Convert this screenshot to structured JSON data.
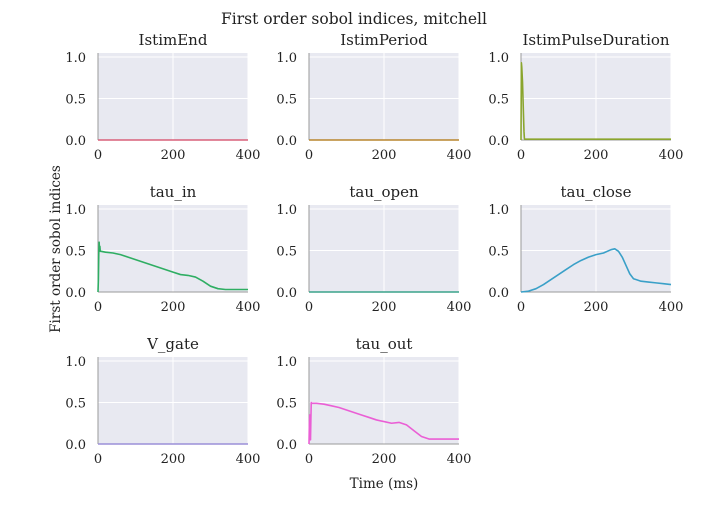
{
  "figure": {
    "suptitle": "First order sobol indices, mitchell",
    "ylabel": "First order sobol indices",
    "xlabel": "Time (ms)"
  },
  "style": {
    "panel_background": "#e8e9f1",
    "grid_color": "#ffffff",
    "axis_color": "#9a9a9a",
    "text_color": "#222222"
  },
  "chart_data": [
    {
      "type": "line",
      "title": "IstimEnd",
      "color": "#d9607a",
      "xlim": [
        0,
        400
      ],
      "ylim": [
        0,
        1.0
      ],
      "xticks": [
        "0",
        "200",
        "400"
      ],
      "yticks": [
        "0.0",
        "0.5",
        "1.0"
      ],
      "x": [
        0,
        100,
        200,
        300,
        400
      ],
      "y": [
        0,
        0,
        0,
        0,
        0
      ]
    },
    {
      "type": "line",
      "title": "IstimPeriod",
      "color": "#b8862e",
      "xlim": [
        0,
        400
      ],
      "ylim": [
        0,
        1.0
      ],
      "xticks": [
        "0",
        "200",
        "400"
      ],
      "yticks": [
        "0.0",
        "0.5",
        "1.0"
      ],
      "x": [
        0,
        100,
        200,
        300,
        400
      ],
      "y": [
        0,
        0,
        0,
        0,
        0
      ]
    },
    {
      "type": "line",
      "title": "IstimPulseDuration",
      "color": "#8aa52e",
      "xlim": [
        0,
        400
      ],
      "ylim": [
        0,
        1.0
      ],
      "xticks": [
        "0",
        "200",
        "400"
      ],
      "yticks": [
        "0.0",
        "0.5",
        "1.0"
      ],
      "x": [
        0,
        1,
        2,
        4,
        6,
        8,
        9,
        10,
        50,
        100,
        200,
        300,
        400
      ],
      "y": [
        0.0,
        0.93,
        0.88,
        0.7,
        0.4,
        0.1,
        0.02,
        0.01,
        0.01,
        0.01,
        0.01,
        0.01,
        0.01
      ]
    },
    {
      "type": "line",
      "title": "tau_in",
      "color": "#2fae63",
      "xlim": [
        0,
        400
      ],
      "ylim": [
        0,
        1.0
      ],
      "xticks": [
        "0",
        "200",
        "400"
      ],
      "yticks": [
        "0.0",
        "0.5",
        "1.0"
      ],
      "x": [
        0,
        1,
        2,
        3,
        4,
        5,
        6,
        8,
        20,
        40,
        60,
        80,
        100,
        120,
        140,
        160,
        180,
        200,
        220,
        240,
        260,
        280,
        300,
        320,
        340,
        360,
        380,
        400
      ],
      "y": [
        0.0,
        0.15,
        0.45,
        0.6,
        0.5,
        0.55,
        0.49,
        0.49,
        0.48,
        0.47,
        0.45,
        0.42,
        0.39,
        0.36,
        0.33,
        0.3,
        0.27,
        0.24,
        0.21,
        0.2,
        0.18,
        0.13,
        0.07,
        0.04,
        0.03,
        0.03,
        0.03,
        0.03
      ]
    },
    {
      "type": "line",
      "title": "tau_open",
      "color": "#3aa38a",
      "xlim": [
        0,
        400
      ],
      "ylim": [
        0,
        1.0
      ],
      "xticks": [
        "0",
        "200",
        "400"
      ],
      "yticks": [
        "0.0",
        "0.5",
        "1.0"
      ],
      "x": [
        0,
        100,
        200,
        300,
        400
      ],
      "y": [
        0,
        0,
        0,
        0,
        0
      ]
    },
    {
      "type": "line",
      "title": "tau_close",
      "color": "#3aa0c8",
      "xlim": [
        0,
        400
      ],
      "ylim": [
        0,
        1.0
      ],
      "xticks": [
        "0",
        "200",
        "400"
      ],
      "yticks": [
        "0.0",
        "0.5",
        "1.0"
      ],
      "x": [
        0,
        20,
        40,
        60,
        80,
        100,
        120,
        140,
        160,
        180,
        200,
        220,
        240,
        250,
        260,
        270,
        280,
        290,
        300,
        320,
        340,
        360,
        380,
        400
      ],
      "y": [
        0.0,
        0.01,
        0.04,
        0.09,
        0.15,
        0.21,
        0.27,
        0.33,
        0.38,
        0.42,
        0.45,
        0.47,
        0.51,
        0.52,
        0.49,
        0.42,
        0.32,
        0.22,
        0.16,
        0.13,
        0.12,
        0.11,
        0.1,
        0.09
      ]
    },
    {
      "type": "line",
      "title": "V_gate",
      "color": "#9b8fd8",
      "xlim": [
        0,
        400
      ],
      "ylim": [
        0,
        1.0
      ],
      "xticks": [
        "0",
        "200",
        "400"
      ],
      "yticks": [
        "0.0",
        "0.5",
        "1.0"
      ],
      "x": [
        0,
        100,
        200,
        300,
        400
      ],
      "y": [
        0,
        0,
        0,
        0,
        0
      ]
    },
    {
      "type": "line",
      "title": "tau_out",
      "color": "#ea5fd5",
      "xlim": [
        0,
        400
      ],
      "ylim": [
        0,
        1.0
      ],
      "xticks": [
        "0",
        "200",
        "400"
      ],
      "yticks": [
        "0.0",
        "0.5",
        "1.0"
      ],
      "x": [
        0,
        1,
        2,
        3,
        4,
        5,
        6,
        7,
        8,
        20,
        40,
        60,
        80,
        100,
        120,
        140,
        160,
        180,
        200,
        220,
        240,
        260,
        280,
        300,
        320,
        340,
        360,
        380,
        400
      ],
      "y": [
        0.0,
        0.25,
        0.35,
        0.1,
        0.05,
        0.3,
        0.5,
        0.49,
        0.49,
        0.49,
        0.48,
        0.46,
        0.44,
        0.41,
        0.38,
        0.35,
        0.32,
        0.29,
        0.27,
        0.25,
        0.26,
        0.23,
        0.16,
        0.09,
        0.06,
        0.06,
        0.06,
        0.06,
        0.06
      ]
    }
  ]
}
